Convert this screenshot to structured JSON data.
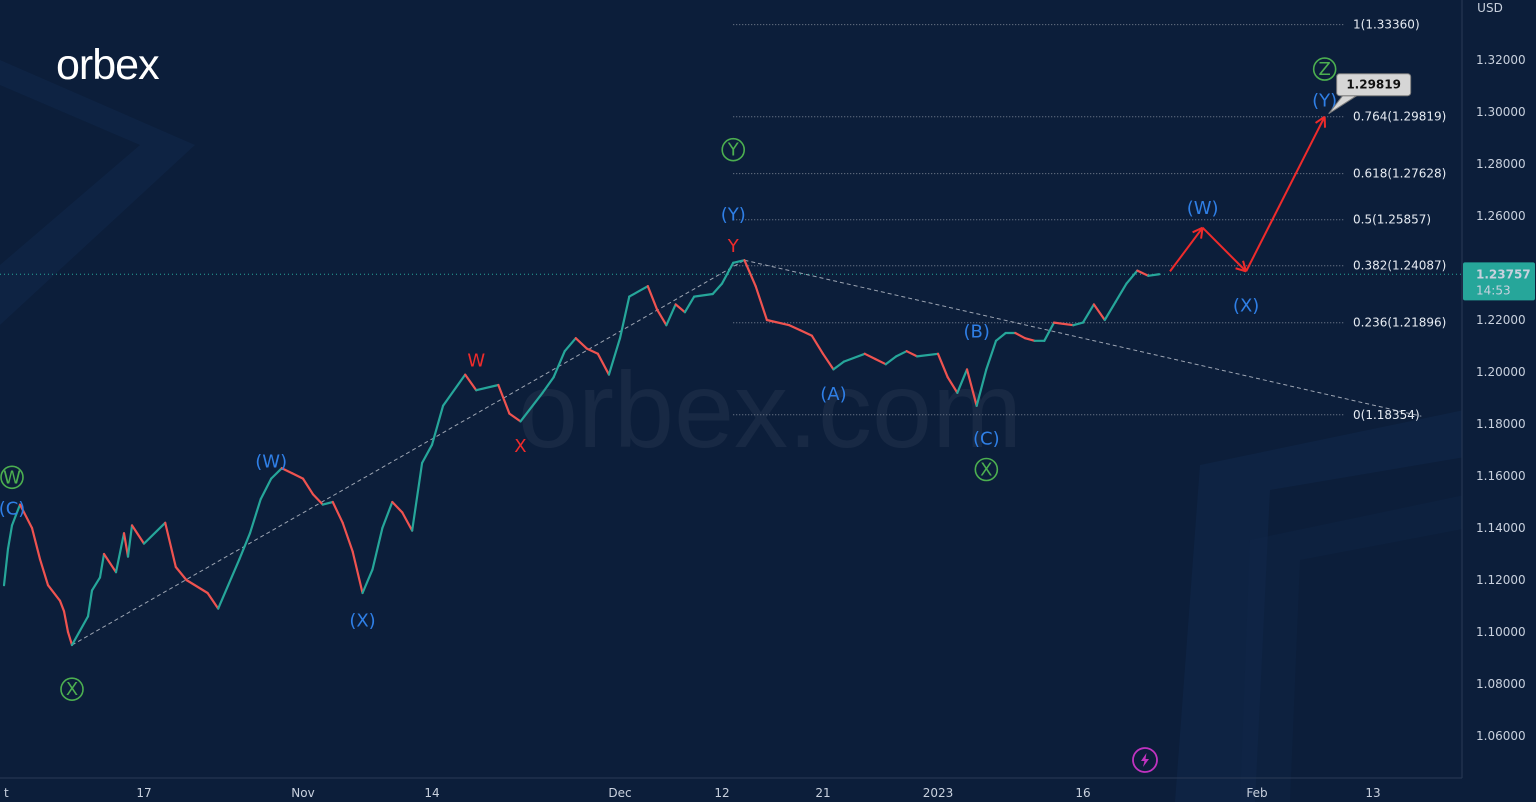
{
  "brand": {
    "logo_text": "orbex",
    "watermark": "orbex.com"
  },
  "colors": {
    "background": "#0c1e3a",
    "candle_up": "#26a69a",
    "candle_down": "#ef5350",
    "wave_blue": "#2f7fe6",
    "wave_green": "#4caf50",
    "wave_red": "#ef2b2b",
    "projection": "#ef2b2b",
    "current_price_bg": "#26a69a",
    "fib_line": "#7d8796"
  },
  "price_axis": {
    "currency": "USD"
  },
  "current_price": {
    "value": "1.23757",
    "countdown": "14:53",
    "numeric": 1.23757
  },
  "target_label": {
    "value": "1.29819",
    "numeric": 1.29819
  },
  "icons": {
    "alert": "lightning-icon"
  },
  "chart_data": {
    "type": "line",
    "title": "",
    "series_name": "",
    "x_ticks": [
      "t",
      "17",
      "Nov",
      "14",
      "Dec",
      "12",
      "21",
      "2023",
      "16",
      "Feb",
      "13"
    ],
    "x_tick_dates": [
      "2022-09-12",
      "2022-10-17",
      "2022-11-01",
      "2022-11-14",
      "2022-12-01",
      "2022-12-12",
      "2022-12-21",
      "2023-01-01",
      "2023-01-16",
      "2023-02-01",
      "2023-02-13"
    ],
    "y_ticks": [
      "1.32000",
      "1.30000",
      "1.28000",
      "1.26000",
      "1.24000",
      "1.22000",
      "1.20000",
      "1.18000",
      "1.16000",
      "1.14000",
      "1.12000",
      "1.10000",
      "1.08000",
      "1.06000"
    ],
    "ylim": [
      1.045,
      1.34
    ],
    "price_path": [
      [
        "2022-09-12",
        1.118
      ],
      [
        "2022-09-13",
        1.132
      ],
      [
        "2022-09-14",
        1.141
      ],
      [
        "2022-09-16",
        1.149
      ],
      [
        "2022-09-19",
        1.14
      ],
      [
        "2022-09-21",
        1.128
      ],
      [
        "2022-09-23",
        1.118
      ],
      [
        "2022-09-26",
        1.112
      ],
      [
        "2022-09-27",
        1.108
      ],
      [
        "2022-09-28",
        1.1
      ],
      [
        "2022-09-29",
        1.095
      ],
      [
        "2022-10-03",
        1.106
      ],
      [
        "2022-10-04",
        1.116
      ],
      [
        "2022-10-06",
        1.121
      ],
      [
        "2022-10-07",
        1.13
      ],
      [
        "2022-10-10",
        1.123
      ],
      [
        "2022-10-12",
        1.138
      ],
      [
        "2022-10-13",
        1.129
      ],
      [
        "2022-10-14",
        1.141
      ],
      [
        "2022-10-17",
        1.134
      ],
      [
        "2022-10-19",
        1.142
      ],
      [
        "2022-10-20",
        1.125
      ],
      [
        "2022-10-21",
        1.12
      ],
      [
        "2022-10-23",
        1.115
      ],
      [
        "2022-10-24",
        1.109
      ],
      [
        "2022-10-26",
        1.128
      ],
      [
        "2022-10-27",
        1.138
      ],
      [
        "2022-10-28",
        1.151
      ],
      [
        "2022-10-29",
        1.159
      ],
      [
        "2022-10-30",
        1.163
      ],
      [
        "2022-10-31",
        1.161
      ],
      [
        "2022-11-01",
        1.159
      ],
      [
        "2022-11-02",
        1.153
      ],
      [
        "2022-11-03",
        1.149
      ],
      [
        "2022-11-04",
        1.15
      ],
      [
        "2022-11-05",
        1.142
      ],
      [
        "2022-11-06",
        1.131
      ],
      [
        "2022-11-07",
        1.115
      ],
      [
        "2022-11-08",
        1.124
      ],
      [
        "2022-11-09",
        1.14
      ],
      [
        "2022-11-10",
        1.15
      ],
      [
        "2022-11-11",
        1.146
      ],
      [
        "2022-11-12",
        1.139
      ],
      [
        "2022-11-13",
        1.165
      ],
      [
        "2022-11-14",
        1.172
      ],
      [
        "2022-11-15",
        1.187
      ],
      [
        "2022-11-17",
        1.199
      ],
      [
        "2022-11-18",
        1.193
      ],
      [
        "2022-11-20",
        1.195
      ],
      [
        "2022-11-21",
        1.184
      ],
      [
        "2022-11-22",
        1.181
      ],
      [
        "2022-11-24",
        1.192
      ],
      [
        "2022-11-25",
        1.198
      ],
      [
        "2022-11-26",
        1.208
      ],
      [
        "2022-11-27",
        1.213
      ],
      [
        "2022-11-28",
        1.209
      ],
      [
        "2022-11-29",
        1.207
      ],
      [
        "2022-11-30",
        1.199
      ],
      [
        "2022-12-01",
        1.213
      ],
      [
        "2022-12-02",
        1.229
      ],
      [
        "2022-12-04",
        1.233
      ],
      [
        "2022-12-05",
        1.224
      ],
      [
        "2022-12-06",
        1.218
      ],
      [
        "2022-12-07",
        1.226
      ],
      [
        "2022-12-08",
        1.223
      ],
      [
        "2022-12-09",
        1.229
      ],
      [
        "2022-12-11",
        1.23
      ],
      [
        "2022-12-12",
        1.234
      ],
      [
        "2022-12-13",
        1.242
      ],
      [
        "2022-12-14",
        1.243
      ],
      [
        "2022-12-15",
        1.233
      ],
      [
        "2022-12-16",
        1.22
      ],
      [
        "2022-12-18",
        1.218
      ],
      [
        "2022-12-19",
        1.216
      ],
      [
        "2022-12-20",
        1.214
      ],
      [
        "2022-12-21",
        1.207
      ],
      [
        "2022-12-22",
        1.201
      ],
      [
        "2022-12-23",
        1.204
      ],
      [
        "2022-12-25",
        1.207
      ],
      [
        "2022-12-26",
        1.205
      ],
      [
        "2022-12-27",
        1.203
      ],
      [
        "2022-12-28",
        1.206
      ],
      [
        "2022-12-29",
        1.208
      ],
      [
        "2022-12-30",
        1.206
      ],
      [
        "2023-01-01",
        1.207
      ],
      [
        "2023-01-02",
        1.198
      ],
      [
        "2023-01-03",
        1.192
      ],
      [
        "2023-01-04",
        1.201
      ],
      [
        "2023-01-05",
        1.187
      ],
      [
        "2023-01-06",
        1.201
      ],
      [
        "2023-01-07",
        1.212
      ],
      [
        "2023-01-08",
        1.215
      ],
      [
        "2023-01-09",
        1.215
      ],
      [
        "2023-01-10",
        1.213
      ],
      [
        "2023-01-11",
        1.212
      ],
      [
        "2023-01-12",
        1.212
      ],
      [
        "2023-01-13",
        1.219
      ],
      [
        "2023-01-15",
        1.218
      ],
      [
        "2023-01-16",
        1.219
      ],
      [
        "2023-01-17",
        1.226
      ],
      [
        "2023-01-18",
        1.22
      ],
      [
        "2023-01-19",
        1.227
      ],
      [
        "2023-01-20",
        1.234
      ],
      [
        "2023-01-21",
        1.239
      ],
      [
        "2023-01-22",
        1.237
      ],
      [
        "2023-01-23",
        1.2376
      ]
    ],
    "fib_levels": [
      {
        "label": "1(1.33360)",
        "value": 1.3336
      },
      {
        "label": "0.764(1.29819)",
        "value": 1.29819
      },
      {
        "label": "0.618(1.27628)",
        "value": 1.27628
      },
      {
        "label": "0.5(1.25857)",
        "value": 1.25857
      },
      {
        "label": "0.382(1.24087)",
        "value": 1.24087
      },
      {
        "label": "0.236(1.21896)",
        "value": 1.21896
      },
      {
        "label": "0(1.18354)",
        "value": 1.18354
      }
    ],
    "fib_start_date": "2022-12-13",
    "fib_end_date": "2023-02-18",
    "trendlines": [
      {
        "from": [
          "2022-09-29",
          1.095
        ],
        "to": [
          "2022-12-14",
          1.243
        ]
      },
      {
        "from": [
          "2022-12-14",
          1.243
        ],
        "to": [
          "2023-02-18",
          1.183
        ]
      }
    ],
    "projection_path": [
      [
        "2023-01-24",
        1.2387
      ],
      [
        "2023-01-27",
        1.2555
      ],
      [
        "2023-01-31",
        1.2387
      ],
      [
        "2023-02-08",
        1.2982
      ]
    ],
    "wave_labels": [
      {
        "text": "W",
        "date": "2022-09-14",
        "price": 1.1595,
        "color": "green",
        "circled": true
      },
      {
        "text": "(C)",
        "date": "2022-09-14",
        "price": 1.1475,
        "color": "blue",
        "circled": false
      },
      {
        "text": "X",
        "date": "2022-09-29",
        "price": 1.078,
        "color": "green",
        "circled": true
      },
      {
        "text": "(W)",
        "date": "2022-10-29",
        "price": 1.1655,
        "color": "blue",
        "circled": false
      },
      {
        "text": "(X)",
        "date": "2022-11-07",
        "price": 1.1045,
        "color": "blue",
        "circled": false
      },
      {
        "text": "W",
        "date": "2022-11-18",
        "price": 1.2045,
        "color": "red",
        "circled": false
      },
      {
        "text": "X",
        "date": "2022-11-22",
        "price": 1.1715,
        "color": "red",
        "circled": false
      },
      {
        "text": "Y",
        "date": "2022-12-13",
        "price": 1.2855,
        "color": "green",
        "circled": true
      },
      {
        "text": "(Y)",
        "date": "2022-12-13",
        "price": 1.2605,
        "color": "blue",
        "circled": false
      },
      {
        "text": "Y",
        "date": "2022-12-13",
        "price": 1.2485,
        "color": "red",
        "circled": false
      },
      {
        "text": "(A)",
        "date": "2022-12-22",
        "price": 1.1915,
        "color": "blue",
        "circled": false
      },
      {
        "text": "(B)",
        "date": "2023-01-05",
        "price": 1.2155,
        "color": "blue",
        "circled": false
      },
      {
        "text": "(C)",
        "date": "2023-01-06",
        "price": 1.1745,
        "color": "blue",
        "circled": false
      },
      {
        "text": "X",
        "date": "2023-01-06",
        "price": 1.1625,
        "color": "green",
        "circled": true
      },
      {
        "text": "(W)",
        "date": "2023-01-27",
        "price": 1.263,
        "color": "blue",
        "circled": false
      },
      {
        "text": "(X)",
        "date": "2023-01-31",
        "price": 1.2255,
        "color": "blue",
        "circled": false
      },
      {
        "text": "Z",
        "date": "2023-02-08",
        "price": 1.3165,
        "color": "green",
        "circled": true
      },
      {
        "text": "(Y)",
        "date": "2023-02-08",
        "price": 1.3045,
        "color": "blue",
        "circled": false
      }
    ]
  }
}
